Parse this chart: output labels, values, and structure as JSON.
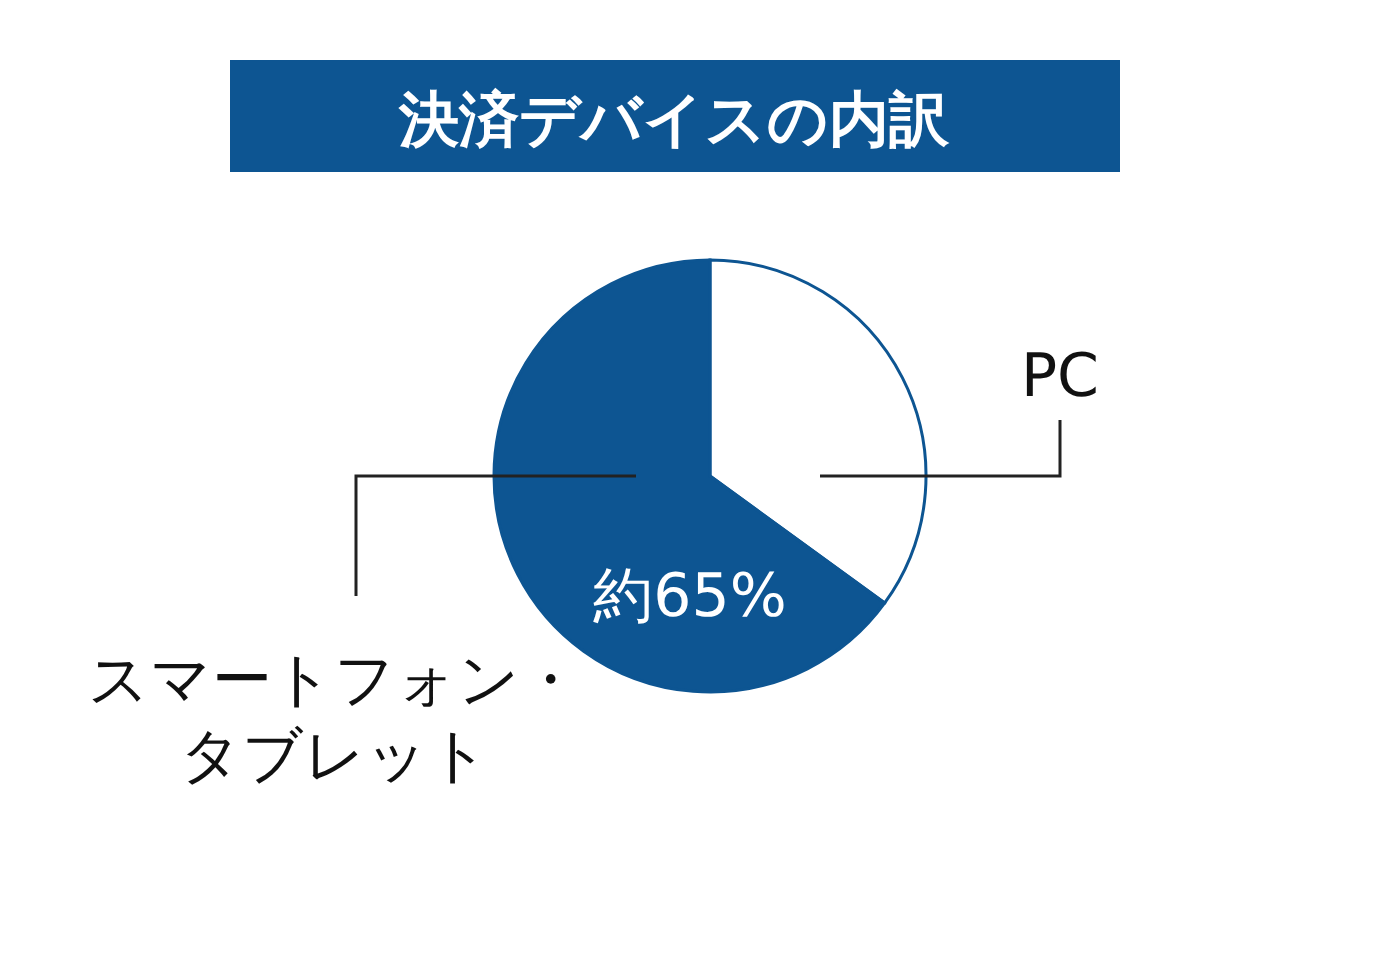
{
  "chart_data": {
    "type": "pie",
    "title": "決済デバイスの内訳",
    "categories": [
      "PC",
      "スマートフォン・タブレット"
    ],
    "values": [
      35,
      65
    ],
    "colors": [
      "#ffffff",
      "#0d5592"
    ],
    "value_labels": [
      null,
      "約65%"
    ]
  }
}
